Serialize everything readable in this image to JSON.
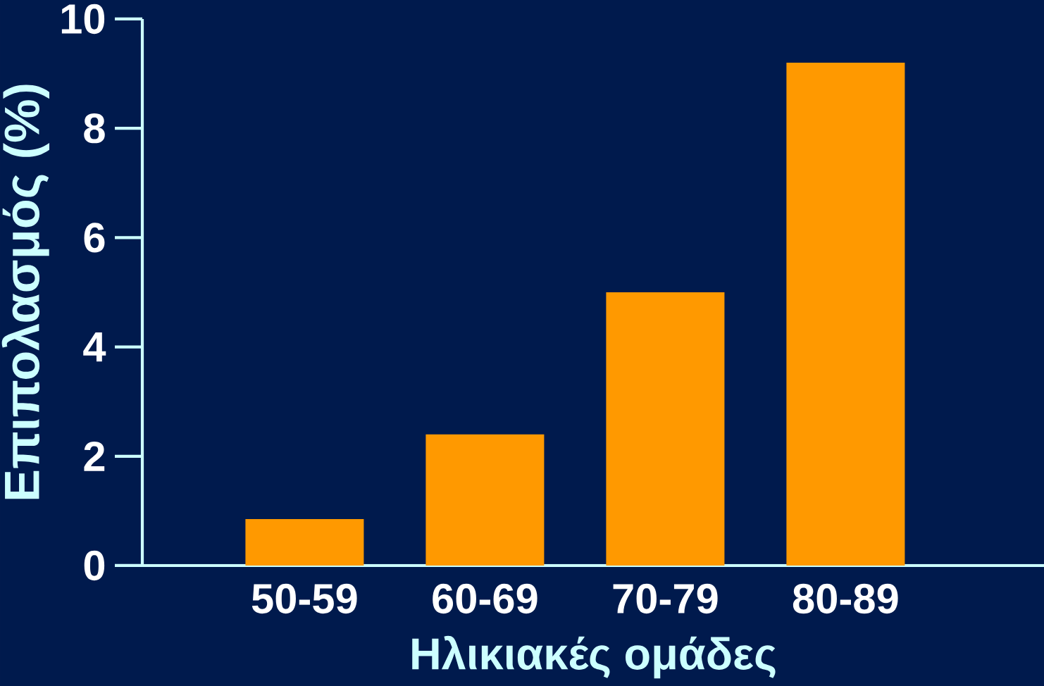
{
  "chart_data": {
    "type": "bar",
    "xlabel": "Ηλικιακές ομάδες",
    "ylabel": "Επιπολασμός (%)",
    "categories": [
      "50-59",
      "60-69",
      "70-79",
      "80-89"
    ],
    "values": [
      0.85,
      2.4,
      5.0,
      9.2
    ],
    "color": "#ff9900",
    "ylim": [
      0,
      10
    ],
    "yticks": [
      0,
      2,
      4,
      6,
      8,
      10
    ]
  }
}
